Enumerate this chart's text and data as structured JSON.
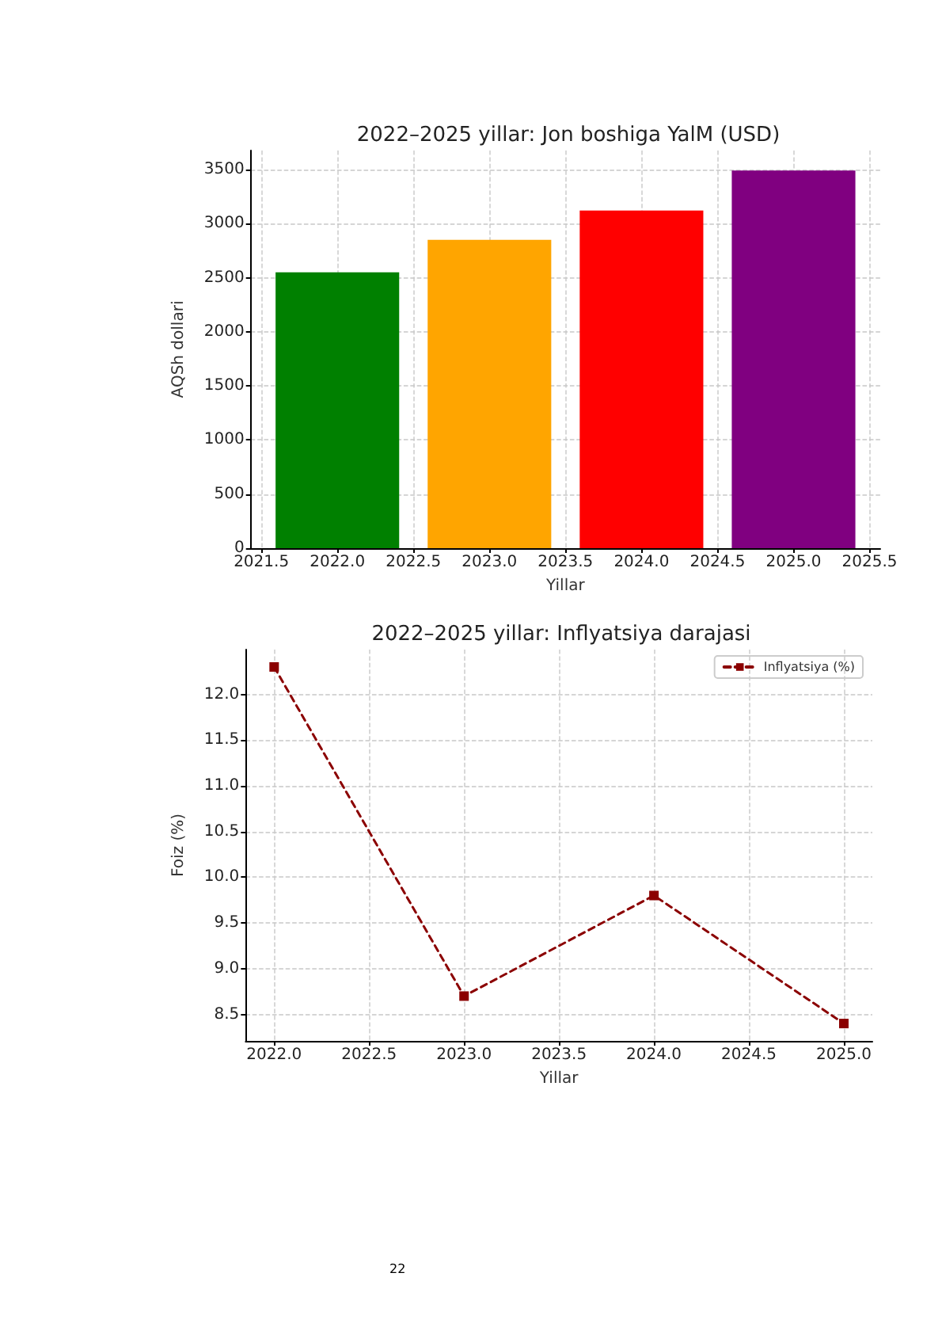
{
  "chart_data": [
    {
      "type": "bar",
      "title": "2022–2025 yillar: Jon boshiga YalM (USD)",
      "xlabel": "Yillar",
      "ylabel": "AQSh dollari",
      "x": [
        2022,
        2023,
        2024,
        2025
      ],
      "values": [
        2550,
        2850,
        3120,
        3490
      ],
      "colors": [
        "#008000",
        "#ffa500",
        "#ff0000",
        "#800080"
      ],
      "xlim": [
        2021.43,
        2025.57
      ],
      "xticks": [
        {
          "value": 2021.5,
          "label": "2021.5"
        },
        {
          "value": 2022,
          "label": "2022.0"
        },
        {
          "value": 2022.5,
          "label": "2022.5"
        },
        {
          "value": 2023,
          "label": "2023.0"
        },
        {
          "value": 2023.5,
          "label": "2023.5"
        },
        {
          "value": 2024,
          "label": "2024.0"
        },
        {
          "value": 2024.5,
          "label": "2024.5"
        },
        {
          "value": 2025,
          "label": "2025.0"
        },
        {
          "value": 2025.5,
          "label": "2025.5"
        }
      ],
      "ylim": [
        0,
        3675
      ],
      "yticks": [
        0,
        500,
        1000,
        1500,
        2000,
        2500,
        3000,
        3500
      ],
      "grid": true
    },
    {
      "type": "line",
      "title": "2022–2025 yillar: Inflyatsiya darajasi",
      "xlabel": "Yillar",
      "ylabel": "Foiz (%)",
      "x": [
        2022,
        2023,
        2024,
        2025
      ],
      "series": [
        {
          "name": "Inflyatsiya (%)",
          "color": "#8b0000",
          "values": [
            12.3,
            8.7,
            9.8,
            8.4
          ]
        }
      ],
      "xlim": [
        2021.85,
        2025.15
      ],
      "xticks": [
        {
          "value": 2022,
          "label": "2022.0"
        },
        {
          "value": 2022.5,
          "label": "2022.5"
        },
        {
          "value": 2023,
          "label": "2023.0"
        },
        {
          "value": 2023.5,
          "label": "2023.5"
        },
        {
          "value": 2024,
          "label": "2024.0"
        },
        {
          "value": 2024.5,
          "label": "2024.5"
        },
        {
          "value": 2025,
          "label": "2025.0"
        }
      ],
      "ylim": [
        8.21,
        12.49
      ],
      "yticks": [
        8.5,
        {
          "value": 9,
          "label": "9.0"
        },
        9.5,
        {
          "value": 10,
          "label": "10.0"
        },
        10.5,
        {
          "value": 11,
          "label": "11.0"
        },
        11.5,
        {
          "value": 12,
          "label": "12.0"
        }
      ],
      "grid": true,
      "legend": "top right",
      "marker": "square",
      "line_style": "dashed",
      "annotations": [
        "22"
      ]
    }
  ]
}
